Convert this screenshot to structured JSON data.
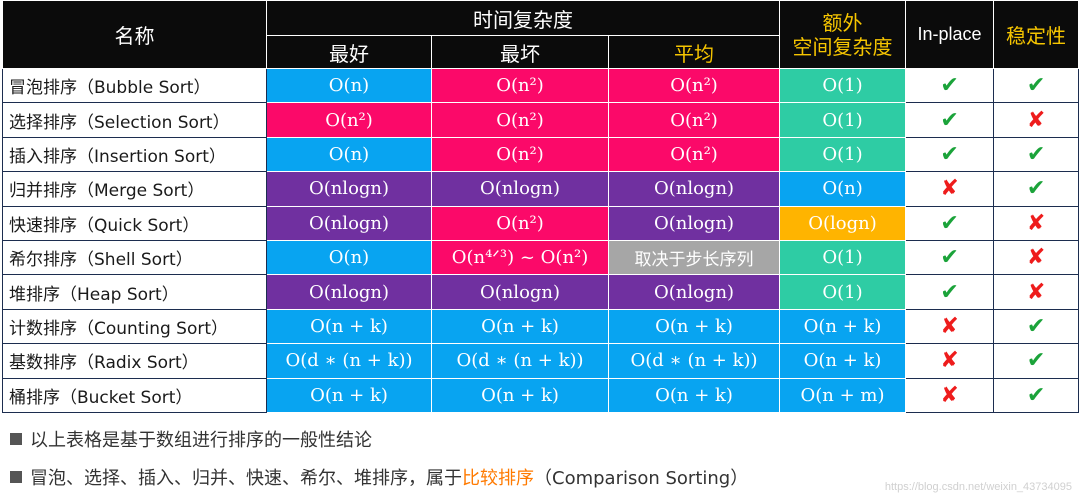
{
  "headers": {
    "name": "名称",
    "time": "时间复杂度",
    "best": "最好",
    "worst": "最坏",
    "average": "平均",
    "space_line1": "额外",
    "space_line2": "空间复杂度",
    "inplace": "In-place",
    "stable": "稳定性"
  },
  "colors": {
    "blue": "#08a4f1",
    "pink": "#fb0969",
    "purple": "#7030a0",
    "teal": "#2ecca4",
    "orange": "#ffb400",
    "gray": "#a6a6a6",
    "check": "#1ba33a",
    "cross": "#ee1c1c"
  },
  "rows": [
    {
      "name": "冒泡排序（Bubble Sort）",
      "best": "O(n)",
      "best_color": "blue",
      "worst": "O(n²)",
      "worst_color": "pink",
      "avg": "O(n²)",
      "avg_color": "pink",
      "space": "O(1)",
      "space_color": "teal",
      "inplace": true,
      "stable": true
    },
    {
      "name": "选择排序（Selection Sort）",
      "best": "O(n²)",
      "best_color": "pink",
      "worst": "O(n²)",
      "worst_color": "pink",
      "avg": "O(n²)",
      "avg_color": "pink",
      "space": "O(1)",
      "space_color": "teal",
      "inplace": true,
      "stable": false
    },
    {
      "name": "插入排序（Insertion Sort）",
      "best": "O(n)",
      "best_color": "blue",
      "worst": "O(n²)",
      "worst_color": "pink",
      "avg": "O(n²)",
      "avg_color": "pink",
      "space": "O(1)",
      "space_color": "teal",
      "inplace": true,
      "stable": true
    },
    {
      "name": "归并排序（Merge Sort）",
      "best": "O(nlogn)",
      "best_color": "purple",
      "worst": "O(nlogn)",
      "worst_color": "purple",
      "avg": "O(nlogn)",
      "avg_color": "purple",
      "space": "O(n)",
      "space_color": "blue",
      "inplace": false,
      "stable": true
    },
    {
      "name": "快速排序（Quick Sort）",
      "best": "O(nlogn)",
      "best_color": "purple",
      "worst": "O(n²)",
      "worst_color": "pink",
      "avg": "O(nlogn)",
      "avg_color": "purple",
      "space": "O(logn)",
      "space_color": "orange",
      "inplace": true,
      "stable": false
    },
    {
      "name": "希尔排序（Shell Sort）",
      "best": "O(n)",
      "best_color": "blue",
      "worst": "O(n⁴ᐟ³) ~ O(n²)",
      "worst_color": "pink",
      "avg": "取决于步长序列",
      "avg_color": "gray",
      "avg_note": true,
      "space": "O(1)",
      "space_color": "teal",
      "inplace": true,
      "stable": false
    },
    {
      "name": "堆排序（Heap Sort）",
      "best": "O(nlogn)",
      "best_color": "purple",
      "worst": "O(nlogn)",
      "worst_color": "purple",
      "avg": "O(nlogn)",
      "avg_color": "purple",
      "space": "O(1)",
      "space_color": "teal",
      "inplace": true,
      "stable": false
    },
    {
      "name": "计数排序（Counting Sort）",
      "best": "O(n + k)",
      "best_color": "blue",
      "worst": "O(n + k)",
      "worst_color": "blue",
      "avg": "O(n + k)",
      "avg_color": "blue",
      "space": "O(n + k)",
      "space_color": "blue",
      "inplace": false,
      "stable": true
    },
    {
      "name": "基数排序（Radix Sort）",
      "best": "O(d ∗ (n + k))",
      "best_color": "blue",
      "worst": "O(d ∗ (n + k))",
      "worst_color": "blue",
      "avg": "O(d ∗ (n + k))",
      "avg_color": "blue",
      "space": "O(n + k)",
      "space_color": "blue",
      "inplace": false,
      "stable": true
    },
    {
      "name": "桶排序（Bucket Sort）",
      "best": "O(n + k)",
      "best_color": "blue",
      "worst": "O(n + k)",
      "worst_color": "blue",
      "avg": "O(n + k)",
      "avg_color": "blue",
      "space": "O(n + m)",
      "space_color": "blue",
      "inplace": false,
      "stable": true
    }
  ],
  "symbols": {
    "check": "✔",
    "cross": "✘"
  },
  "notes": {
    "line1": "以上表格是基于数组进行排序的一般性结论",
    "line2_prefix": "冒泡、选择、插入、归并、快速、希尔、堆排序，属于",
    "line2_highlight": "比较排序",
    "line2_suffix": "（Comparison Sorting）"
  },
  "watermark": "https://blog.csdn.net/weixin_43734095"
}
